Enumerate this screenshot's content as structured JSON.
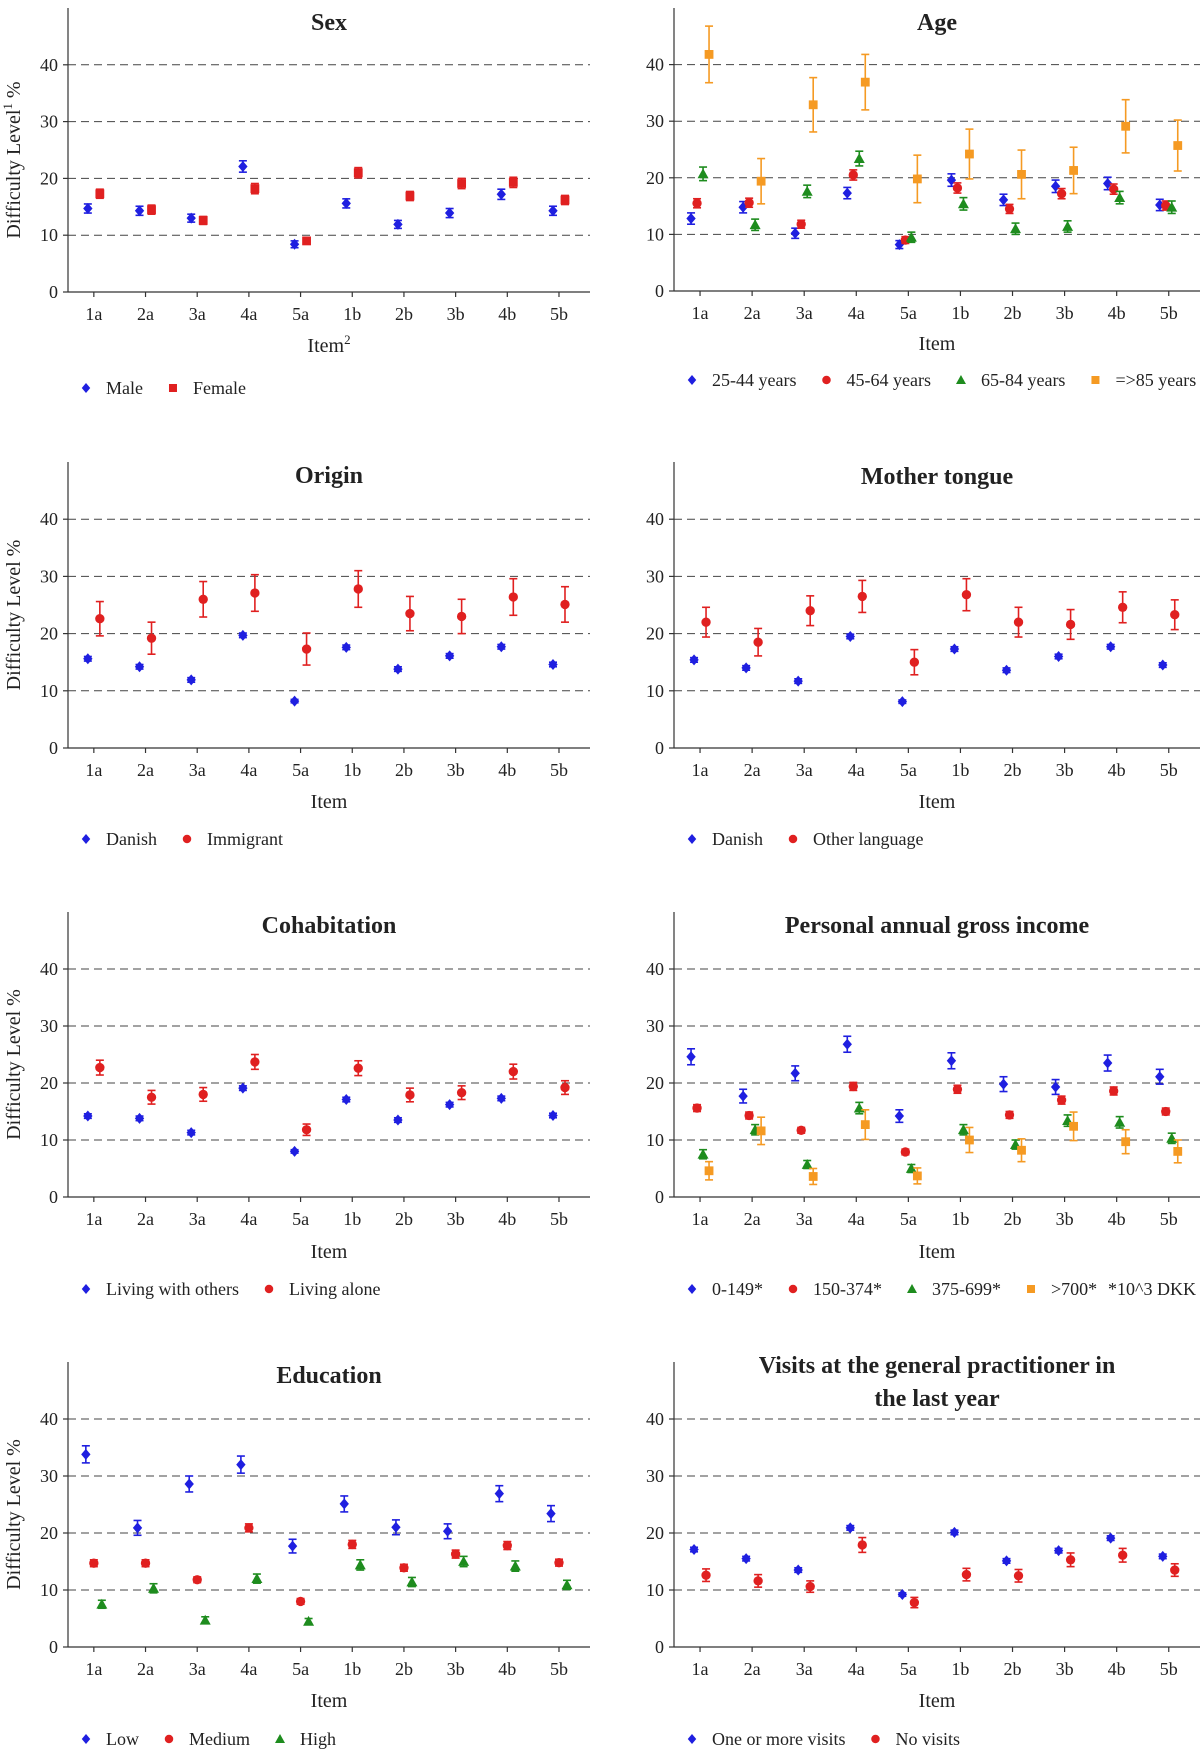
{
  "chart_data": [
    {
      "type": "scatter",
      "title": "Sex",
      "xlabel": "Item",
      "xlabel_sup": "2",
      "ylabel": "Difficulty Level",
      "ylabel_sup": "1",
      "ylabel_unit": "%",
      "ylim": [
        0,
        50
      ],
      "yticks": [
        0,
        10,
        20,
        30,
        40
      ],
      "categories": [
        "1a",
        "2a",
        "3a",
        "4a",
        "5a",
        "1b",
        "2b",
        "3b",
        "4b",
        "5b"
      ],
      "series": [
        {
          "name": "Male",
          "marker": "diamond",
          "color": "#1f1fe0",
          "values": [
            14.7,
            14.3,
            13.0,
            22.1,
            8.4,
            15.6,
            11.9,
            13.9,
            17.2,
            14.3
          ],
          "err": [
            0.8,
            0.8,
            0.7,
            1.0,
            0.6,
            0.8,
            0.7,
            0.8,
            0.9,
            0.8
          ]
        },
        {
          "name": "Female",
          "marker": "square",
          "color": "#e02020",
          "values": [
            17.3,
            14.5,
            12.6,
            18.2,
            9.0,
            21.0,
            16.9,
            19.1,
            19.3,
            16.2
          ],
          "err": [
            0.8,
            0.8,
            0.7,
            0.9,
            0.6,
            0.9,
            0.8,
            0.9,
            0.9,
            0.8
          ]
        }
      ]
    },
    {
      "type": "scatter",
      "title": "Age",
      "xlabel": "Item",
      "ylim": [
        0,
        50
      ],
      "yticks": [
        0,
        10,
        20,
        30,
        40
      ],
      "categories": [
        "1a",
        "2a",
        "3a",
        "4a",
        "5a",
        "1b",
        "2b",
        "3b",
        "4b",
        "5b"
      ],
      "series": [
        {
          "name": "25-44 years",
          "marker": "diamond",
          "color": "#1f1fe0",
          "values": [
            12.8,
            14.8,
            10.2,
            17.3,
            8.2,
            19.6,
            16.1,
            18.5,
            19.0,
            15.2
          ],
          "err": [
            1.0,
            1.0,
            0.9,
            1.0,
            0.7,
            1.1,
            1.0,
            1.1,
            1.1,
            1.0
          ]
        },
        {
          "name": "45-64 years",
          "marker": "circle",
          "color": "#e02020",
          "values": [
            15.5,
            15.6,
            11.8,
            20.5,
            9.0,
            18.2,
            14.5,
            17.2,
            18.0,
            15.1
          ],
          "err": [
            0.8,
            0.8,
            0.7,
            0.9,
            0.6,
            0.9,
            0.8,
            0.9,
            0.9,
            0.8
          ]
        },
        {
          "name": "65-84 years",
          "marker": "triangle",
          "color": "#1e8c1e",
          "values": [
            20.7,
            11.7,
            17.6,
            23.4,
            9.5,
            15.4,
            11.0,
            11.4,
            16.5,
            14.8
          ],
          "err": [
            1.2,
            1.0,
            1.1,
            1.3,
            0.9,
            1.1,
            1.0,
            1.0,
            1.1,
            1.1
          ]
        },
        {
          "name": "=>85 years",
          "marker": "square",
          "color": "#f59a23",
          "values": [
            41.8,
            19.4,
            32.9,
            36.9,
            19.8,
            24.2,
            20.6,
            21.3,
            29.1,
            25.7
          ],
          "err": [
            5.0,
            4.0,
            4.8,
            4.9,
            4.2,
            4.4,
            4.3,
            4.1,
            4.7,
            4.5
          ]
        }
      ]
    },
    {
      "type": "scatter",
      "title": "Origin",
      "xlabel": "Item",
      "ylabel": "Difficulty Level",
      "ylabel_unit": "%",
      "ylim": [
        0,
        50
      ],
      "yticks": [
        0,
        10,
        20,
        30,
        40
      ],
      "categories": [
        "1a",
        "2a",
        "3a",
        "4a",
        "5a",
        "1b",
        "2b",
        "3b",
        "4b",
        "5b"
      ],
      "series": [
        {
          "name": "Danish",
          "marker": "diamond",
          "color": "#1f1fe0",
          "values": [
            15.6,
            14.2,
            11.9,
            19.7,
            8.2,
            17.6,
            13.8,
            16.1,
            17.7,
            14.6
          ],
          "err": [
            0.4,
            0.4,
            0.4,
            0.4,
            0.3,
            0.4,
            0.4,
            0.4,
            0.4,
            0.4
          ]
        },
        {
          "name": "Immigrant",
          "marker": "circle",
          "color": "#e02020",
          "values": [
            22.6,
            19.2,
            26.0,
            27.1,
            17.3,
            27.8,
            23.5,
            23.0,
            26.4,
            25.1
          ],
          "err": [
            3.0,
            2.8,
            3.1,
            3.2,
            2.8,
            3.2,
            3.0,
            3.0,
            3.2,
            3.1
          ]
        }
      ]
    },
    {
      "type": "scatter",
      "title": "Mother tongue",
      "xlabel": "Item",
      "ylim": [
        0,
        50
      ],
      "yticks": [
        0,
        10,
        20,
        30,
        40
      ],
      "categories": [
        "1a",
        "2a",
        "3a",
        "4a",
        "5a",
        "1b",
        "2b",
        "3b",
        "4b",
        "5b"
      ],
      "series": [
        {
          "name": "Danish",
          "marker": "diamond",
          "color": "#1f1fe0",
          "values": [
            15.4,
            14.0,
            11.7,
            19.5,
            8.1,
            17.3,
            13.6,
            16.0,
            17.7,
            14.5
          ],
          "err": [
            0.4,
            0.4,
            0.4,
            0.4,
            0.3,
            0.4,
            0.4,
            0.4,
            0.4,
            0.4
          ]
        },
        {
          "name": "Other language",
          "marker": "circle",
          "color": "#e02020",
          "values": [
            22.0,
            18.5,
            24.0,
            26.5,
            15.0,
            26.8,
            22.0,
            21.6,
            24.6,
            23.3
          ],
          "err": [
            2.6,
            2.4,
            2.6,
            2.8,
            2.2,
            2.8,
            2.6,
            2.6,
            2.7,
            2.6
          ]
        }
      ]
    },
    {
      "type": "scatter",
      "title": "Cohabitation",
      "xlabel": "Item",
      "ylabel": "Difficulty Level",
      "ylabel_unit": "%",
      "ylim": [
        0,
        50
      ],
      "yticks": [
        0,
        10,
        20,
        30,
        40
      ],
      "categories": [
        "1a",
        "2a",
        "3a",
        "4a",
        "5a",
        "1b",
        "2b",
        "3b",
        "4b",
        "5b"
      ],
      "series": [
        {
          "name": "Living with others",
          "marker": "diamond",
          "color": "#1f1fe0",
          "values": [
            14.2,
            13.8,
            11.3,
            19.1,
            8.0,
            17.1,
            13.5,
            16.2,
            17.3,
            14.3
          ],
          "err": [
            0.4,
            0.4,
            0.4,
            0.4,
            0.3,
            0.4,
            0.4,
            0.4,
            0.4,
            0.4
          ]
        },
        {
          "name": "Living alone",
          "marker": "circle",
          "color": "#e02020",
          "values": [
            22.7,
            17.5,
            18.0,
            23.7,
            11.8,
            22.6,
            17.9,
            18.3,
            22.0,
            19.2
          ],
          "err": [
            1.3,
            1.2,
            1.2,
            1.3,
            1.0,
            1.3,
            1.2,
            1.2,
            1.3,
            1.2
          ]
        }
      ]
    },
    {
      "type": "scatter",
      "title": "Personal annual gross income",
      "xlabel": "Item",
      "ylim": [
        0,
        50
      ],
      "yticks": [
        0,
        10,
        20,
        30,
        40
      ],
      "categories": [
        "1a",
        "2a",
        "3a",
        "4a",
        "5a",
        "1b",
        "2b",
        "3b",
        "4b",
        "5b"
      ],
      "legend_note": "*10^3 DKK",
      "series": [
        {
          "name": "0-149*",
          "marker": "diamond",
          "color": "#1f1fe0",
          "values": [
            24.6,
            17.7,
            21.7,
            26.8,
            14.2,
            23.9,
            19.8,
            19.3,
            23.5,
            21.1
          ],
          "err": [
            1.4,
            1.2,
            1.3,
            1.4,
            1.1,
            1.4,
            1.3,
            1.3,
            1.4,
            1.3
          ]
        },
        {
          "name": "150-374*",
          "marker": "circle",
          "color": "#e02020",
          "values": [
            15.6,
            14.3,
            11.7,
            19.4,
            7.9,
            18.9,
            14.4,
            17.0,
            18.6,
            15.0
          ],
          "err": [
            0.6,
            0.6,
            0.5,
            0.7,
            0.5,
            0.7,
            0.6,
            0.7,
            0.7,
            0.6
          ]
        },
        {
          "name": "375-699*",
          "marker": "triangle",
          "color": "#1e8c1e",
          "values": [
            7.5,
            11.8,
            5.7,
            15.6,
            5.0,
            11.8,
            9.2,
            13.4,
            13.1,
            10.3
          ],
          "err": [
            0.8,
            0.9,
            0.7,
            1.0,
            0.7,
            0.9,
            0.8,
            1.0,
            1.0,
            0.9
          ]
        },
        {
          "name": ">700*",
          "marker": "square",
          "color": "#f59a23",
          "values": [
            4.6,
            11.6,
            3.6,
            12.7,
            3.7,
            10.0,
            8.2,
            12.4,
            9.7,
            8.0
          ],
          "err": [
            1.6,
            2.4,
            1.4,
            2.6,
            1.4,
            2.2,
            2.0,
            2.5,
            2.1,
            2.0
          ]
        }
      ]
    },
    {
      "type": "scatter",
      "title": "Education",
      "xlabel": "Item",
      "ylabel": "Difficulty Level",
      "ylabel_unit": "%",
      "ylim": [
        0,
        50
      ],
      "yticks": [
        0,
        10,
        20,
        30,
        40
      ],
      "categories": [
        "1a",
        "2a",
        "3a",
        "4a",
        "5a",
        "1b",
        "2b",
        "3b",
        "4b",
        "5b"
      ],
      "series": [
        {
          "name": "Low",
          "marker": "diamond",
          "color": "#1f1fe0",
          "values": [
            33.8,
            20.9,
            28.6,
            32.0,
            17.7,
            25.1,
            21.0,
            20.3,
            26.9,
            23.4
          ],
          "err": [
            1.5,
            1.3,
            1.4,
            1.5,
            1.2,
            1.4,
            1.3,
            1.3,
            1.4,
            1.4
          ]
        },
        {
          "name": "Medium",
          "marker": "circle",
          "color": "#e02020",
          "values": [
            14.7,
            14.7,
            11.8,
            20.9,
            8.0,
            18.0,
            13.9,
            16.3,
            17.8,
            14.8
          ],
          "err": [
            0.6,
            0.6,
            0.5,
            0.7,
            0.5,
            0.7,
            0.6,
            0.7,
            0.7,
            0.6
          ]
        },
        {
          "name": "High",
          "marker": "triangle",
          "color": "#1e8c1e",
          "values": [
            7.5,
            10.3,
            4.7,
            12.0,
            4.5,
            14.4,
            11.4,
            15.0,
            14.2,
            10.9
          ],
          "err": [
            0.7,
            0.8,
            0.6,
            0.8,
            0.5,
            0.9,
            0.8,
            0.9,
            0.9,
            0.8
          ]
        }
      ]
    },
    {
      "type": "scatter",
      "title": "Visits at the general practitioner in the last year",
      "title_lines": [
        "Visits at the general practitioner in",
        "the last year"
      ],
      "xlabel": "Item",
      "ylim": [
        0,
        50
      ],
      "yticks": [
        0,
        10,
        20,
        30,
        40
      ],
      "categories": [
        "1a",
        "2a",
        "3a",
        "4a",
        "5a",
        "1b",
        "2b",
        "3b",
        "4b",
        "5b"
      ],
      "series": [
        {
          "name": "One or more visits",
          "marker": "diamond",
          "color": "#1f1fe0",
          "values": [
            17.1,
            15.5,
            13.5,
            20.9,
            9.2,
            20.1,
            15.1,
            16.9,
            19.1,
            15.9
          ],
          "err": [
            0.4,
            0.4,
            0.4,
            0.4,
            0.3,
            0.4,
            0.4,
            0.4,
            0.4,
            0.4
          ]
        },
        {
          "name": "No visits",
          "marker": "circle",
          "color": "#e02020",
          "values": [
            12.6,
            11.6,
            10.6,
            17.9,
            7.8,
            12.7,
            12.5,
            15.3,
            16.1,
            13.5
          ],
          "err": [
            1.1,
            1.1,
            1.0,
            1.3,
            0.9,
            1.1,
            1.1,
            1.2,
            1.2,
            1.1
          ]
        }
      ]
    }
  ]
}
